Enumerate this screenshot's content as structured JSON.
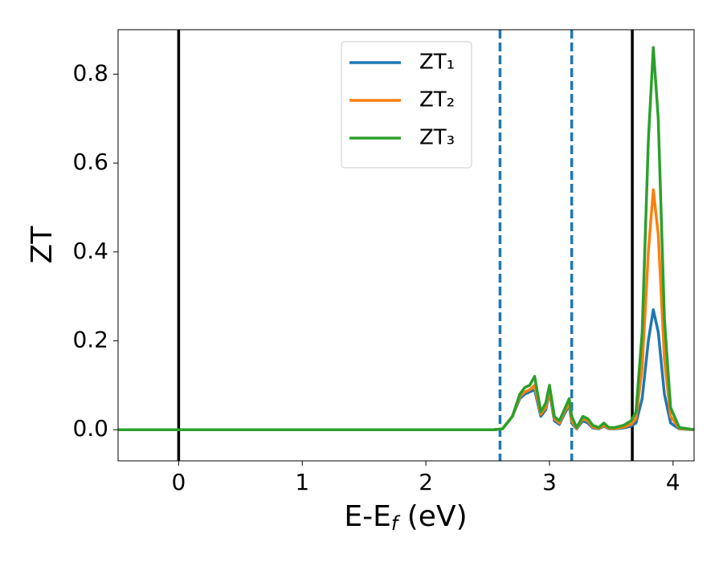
{
  "chart_data": {
    "type": "line",
    "xlabel": [
      "E-E",
      "f",
      " (eV)"
    ],
    "ylabel": "ZT",
    "x": [
      -0.49,
      2.55,
      2.62,
      2.7,
      2.76,
      2.8,
      2.84,
      2.88,
      2.93,
      2.97,
      3.0,
      3.04,
      3.08,
      3.12,
      3.16,
      3.18,
      3.22,
      3.27,
      3.31,
      3.35,
      3.4,
      3.44,
      3.48,
      3.53,
      3.6,
      3.66,
      3.7,
      3.75,
      3.8,
      3.84,
      3.88,
      3.93,
      3.98,
      4.05,
      4.17
    ],
    "series": [
      {
        "name": "ZT₁",
        "color": "#1f77b4",
        "values": [
          0,
          0,
          0.002,
          0.03,
          0.07,
          0.08,
          0.085,
          0.09,
          0.03,
          0.045,
          0.085,
          0.02,
          0.012,
          0.035,
          0.055,
          0.015,
          0.002,
          0.02,
          0.015,
          0.004,
          0.002,
          0.008,
          0.002,
          0.002,
          0.004,
          0.008,
          0.015,
          0.07,
          0.2,
          0.27,
          0.22,
          0.08,
          0.015,
          0.002,
          0
        ]
      },
      {
        "name": "ZT₂",
        "color": "#ff7f0e",
        "values": [
          0,
          0,
          0.002,
          0.03,
          0.075,
          0.085,
          0.09,
          0.1,
          0.035,
          0.05,
          0.09,
          0.025,
          0.015,
          0.04,
          0.06,
          0.02,
          0.003,
          0.025,
          0.02,
          0.006,
          0.003,
          0.01,
          0.003,
          0.003,
          0.006,
          0.012,
          0.025,
          0.14,
          0.4,
          0.54,
          0.44,
          0.16,
          0.03,
          0.003,
          0
        ]
      },
      {
        "name": "ZT₃",
        "color": "#2ca02c",
        "values": [
          0,
          0,
          0.002,
          0.03,
          0.08,
          0.095,
          0.1,
          0.12,
          0.04,
          0.06,
          0.1,
          0.03,
          0.02,
          0.045,
          0.07,
          0.03,
          0.005,
          0.03,
          0.025,
          0.01,
          0.005,
          0.015,
          0.005,
          0.005,
          0.01,
          0.02,
          0.04,
          0.22,
          0.65,
          0.86,
          0.7,
          0.25,
          0.05,
          0.005,
          0
        ]
      }
    ],
    "vlines": [
      {
        "x": 0,
        "color": "#000000",
        "style": "solid"
      },
      {
        "x": 3.67,
        "color": "#000000",
        "style": "solid"
      },
      {
        "x": 2.6,
        "color": "#1f77b4",
        "style": "dashed"
      },
      {
        "x": 3.18,
        "color": "#1f77b4",
        "style": "dashed"
      }
    ],
    "xlim": [
      -0.49,
      4.17
    ],
    "xticks": [
      0,
      1,
      2,
      3,
      4
    ],
    "ylim": [
      -0.07,
      0.9
    ],
    "yticks": [
      {
        "value": 0,
        "label": "0.0"
      },
      {
        "value": 0.2,
        "label": "0.2"
      },
      {
        "value": 0.4,
        "label": "0.4"
      },
      {
        "value": 0.6,
        "label": "0.6"
      },
      {
        "value": 0.8,
        "label": "0.8"
      }
    ],
    "legend": "upper center",
    "grid": false
  }
}
